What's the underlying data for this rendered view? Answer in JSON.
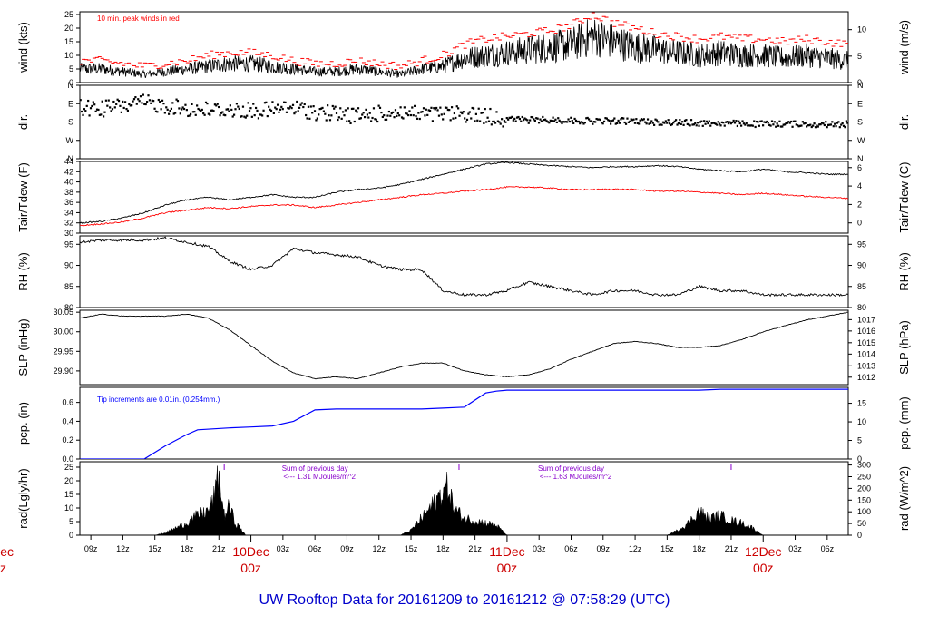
{
  "title": "UW Rooftop Data for 20161209  to  20161212 @ 07:58:29  (UTC)",
  "colors": {
    "primary": "#000000",
    "peak": "#ff0000",
    "dewpoint": "#ff0000",
    "precip": "#0000ff",
    "note": "#8800cc",
    "title": "#0000cc",
    "day": "#cc0000"
  },
  "x_axis": {
    "hour_ticks": [
      "09z",
      "12z",
      "15z",
      "18z",
      "21z",
      "03z",
      "06z",
      "09z",
      "12z",
      "15z",
      "18z",
      "21z",
      "03z",
      "06z",
      "09z",
      "12z",
      "15z",
      "18z",
      "21z",
      "03z",
      "06z"
    ],
    "hour_tick_times": [
      9,
      12,
      15,
      18,
      21,
      27,
      30,
      33,
      36,
      39,
      42,
      45,
      51,
      54,
      57,
      60,
      63,
      66,
      69,
      75,
      78
    ],
    "day_labels": [
      {
        "date": "10Dec",
        "time": "00z",
        "hours": 24
      },
      {
        "date": "11Dec",
        "time": "00z",
        "hours": 48
      },
      {
        "date": "12Dec",
        "time": "00z",
        "hours": 72
      }
    ],
    "left_partial": {
      "date": "ec",
      "time": "z"
    },
    "range_hours": [
      7.97,
      79.97
    ]
  },
  "chart_data": [
    {
      "type": "line",
      "id": "wind",
      "ylabel": "wind (kts)",
      "ylabel_right": "wind (m/s)",
      "ylim": [
        0,
        26
      ],
      "yticks": [
        0,
        5,
        10,
        15,
        20,
        25
      ],
      "right_ticks": [
        {
          "label": "0",
          "value": 0
        },
        {
          "label": "5",
          "value": 9.72
        },
        {
          "label": "10",
          "value": 19.44
        }
      ],
      "annotation": "10 min. peak winds in red",
      "series": [
        {
          "name": "wind",
          "x": [
            8,
            10,
            12,
            14,
            16,
            18,
            20,
            22,
            24,
            26,
            28,
            30,
            32,
            34,
            36,
            38,
            40,
            42,
            44,
            46,
            48,
            50,
            52,
            54,
            56,
            58,
            60,
            62,
            64,
            66,
            68,
            70,
            72,
            74,
            76,
            78,
            80
          ],
          "values": [
            5,
            5,
            4,
            3,
            4,
            5,
            6,
            7,
            7,
            6,
            5,
            4,
            4,
            5,
            4,
            3,
            5,
            6,
            9,
            10,
            11,
            12,
            13,
            14,
            17,
            15,
            13,
            12,
            11,
            10,
            11,
            10,
            10,
            9,
            10,
            9,
            8
          ]
        },
        {
          "name": "peak",
          "x": [
            8,
            10,
            12,
            14,
            16,
            18,
            20,
            22,
            24,
            26,
            28,
            30,
            32,
            34,
            36,
            38,
            40,
            42,
            44,
            46,
            48,
            50,
            52,
            54,
            56,
            58,
            60,
            62,
            64,
            66,
            68,
            70,
            72,
            74,
            76,
            78,
            80
          ],
          "values": [
            8,
            8,
            7,
            6,
            7,
            8,
            10,
            11,
            11,
            10,
            8,
            7,
            7,
            8,
            7,
            6,
            8,
            10,
            14,
            16,
            17,
            18,
            19,
            21,
            25,
            22,
            20,
            18,
            17,
            16,
            17,
            16,
            16,
            15,
            16,
            15,
            14
          ]
        }
      ]
    },
    {
      "type": "scatter",
      "id": "dir",
      "ylabel": "dir.",
      "ylabel_right": "dir.",
      "yticks": [
        {
          "label": "N",
          "value": 0
        },
        {
          "label": "E",
          "value": 90
        },
        {
          "label": "S",
          "value": 180
        },
        {
          "label": "W",
          "value": 270
        },
        {
          "label": "N",
          "value": 360
        }
      ],
      "series": [
        {
          "name": "direction",
          "x": [
            8,
            10,
            12,
            14,
            16,
            18,
            20,
            22,
            24,
            26,
            28,
            30,
            32,
            34,
            36,
            38,
            40,
            42,
            44,
            46,
            48,
            50,
            52,
            54,
            56,
            58,
            60,
            62,
            64,
            66,
            68,
            70,
            72,
            74,
            76,
            78,
            80
          ],
          "values": [
            110,
            115,
            100,
            85,
            100,
            115,
            120,
            120,
            125,
            120,
            110,
            130,
            140,
            150,
            140,
            130,
            145,
            140,
            140,
            150,
            165,
            170,
            170,
            172,
            175,
            175,
            175,
            180,
            182,
            185,
            185,
            188,
            190,
            188,
            190,
            192,
            190
          ]
        }
      ]
    },
    {
      "type": "line",
      "id": "temp",
      "ylabel": "Tair/Tdew (F)",
      "ylabel_right": "Tair/Tdew (C)",
      "ylim": [
        30,
        44
      ],
      "yticks": [
        30,
        32,
        34,
        36,
        38,
        40,
        42,
        44
      ],
      "right_ticks": [
        {
          "label": "0",
          "value": 32
        },
        {
          "label": "2",
          "value": 35.6
        },
        {
          "label": "4",
          "value": 39.2
        },
        {
          "label": "6",
          "value": 42.8
        }
      ],
      "series": [
        {
          "name": "Tair",
          "x": [
            8,
            10,
            12,
            14,
            16,
            18,
            20,
            22,
            24,
            26,
            28,
            30,
            32,
            34,
            36,
            38,
            40,
            42,
            44,
            46,
            48,
            50,
            52,
            54,
            56,
            58,
            60,
            62,
            64,
            66,
            68,
            70,
            72,
            74,
            76,
            78,
            80
          ],
          "values": [
            32,
            32.3,
            33,
            34,
            35.5,
            36.5,
            37,
            36.5,
            37,
            37.5,
            37,
            37,
            38,
            38.5,
            38.8,
            39.5,
            40.5,
            41.5,
            42.5,
            43.5,
            43.8,
            43.5,
            43.2,
            43,
            42.8,
            43,
            43,
            43.2,
            43,
            42.5,
            42.2,
            42,
            42.5,
            42,
            41.8,
            41.5,
            41.5
          ]
        },
        {
          "name": "Tdew",
          "x": [
            8,
            10,
            12,
            14,
            16,
            18,
            20,
            22,
            24,
            26,
            28,
            30,
            32,
            34,
            36,
            38,
            40,
            42,
            44,
            46,
            48,
            50,
            52,
            54,
            56,
            58,
            60,
            62,
            64,
            66,
            68,
            70,
            72,
            74,
            76,
            78,
            80
          ],
          "values": [
            31.5,
            31.8,
            32.2,
            33,
            34,
            34.5,
            35,
            34.8,
            35.2,
            35.5,
            35.5,
            35,
            35.5,
            36,
            36.5,
            37,
            37.5,
            37.8,
            38.2,
            38.5,
            39,
            39,
            38.8,
            38.5,
            38.5,
            38.6,
            38.5,
            38.2,
            38.2,
            38,
            37.8,
            37.5,
            37.8,
            37.5,
            37.2,
            37,
            36.8
          ]
        }
      ]
    },
    {
      "type": "line",
      "id": "rh",
      "ylabel": "RH (%)",
      "ylabel_right": "RH (%)",
      "ylim": [
        80,
        97
      ],
      "yticks": [
        80,
        85,
        90,
        95
      ],
      "right_ticks": [
        {
          "label": "80",
          "value": 80
        },
        {
          "label": "85",
          "value": 85
        },
        {
          "label": "90",
          "value": 90
        },
        {
          "label": "95",
          "value": 95
        }
      ],
      "series": [
        {
          "name": "RH",
          "x": [
            8,
            10,
            12,
            14,
            16,
            18,
            20,
            22,
            24,
            26,
            28,
            30,
            32,
            34,
            36,
            38,
            40,
            42,
            44,
            46,
            48,
            50,
            52,
            54,
            56,
            58,
            60,
            62,
            64,
            66,
            68,
            70,
            72,
            74,
            76,
            78,
            80
          ],
          "values": [
            95.5,
            96,
            96,
            96,
            96.5,
            95.5,
            94.5,
            91,
            89,
            90,
            94,
            93,
            92.5,
            92,
            90,
            89,
            89,
            84,
            83,
            83,
            84,
            86,
            85,
            84,
            83,
            84,
            84,
            83,
            83,
            85,
            84,
            84,
            83,
            83,
            83,
            83,
            83
          ]
        }
      ]
    },
    {
      "type": "line",
      "id": "slp",
      "ylabel": "SLP (inHg)",
      "ylabel_right": "SLP (hPa)",
      "ylim": [
        29.865,
        30.055
      ],
      "yticks": [
        29.9,
        29.95,
        30.0,
        30.05
      ],
      "ytick_labels": [
        "29.90",
        "29.95",
        "30.00",
        "30.05"
      ],
      "right_ticks": [
        {
          "label": "1012",
          "value": 29.884
        },
        {
          "label": "1013",
          "value": 29.913
        },
        {
          "label": "1014",
          "value": 29.943
        },
        {
          "label": "1015",
          "value": 29.972
        },
        {
          "label": "1016",
          "value": 30.002
        },
        {
          "label": "1017",
          "value": 30.031
        }
      ],
      "series": [
        {
          "name": "SLP",
          "x": [
            8,
            10,
            12,
            14,
            16,
            18,
            20,
            22,
            24,
            26,
            28,
            30,
            32,
            34,
            36,
            38,
            40,
            42,
            44,
            46,
            48,
            50,
            52,
            54,
            56,
            58,
            60,
            62,
            64,
            66,
            68,
            70,
            72,
            74,
            76,
            78,
            80
          ],
          "values": [
            30.035,
            30.045,
            30.04,
            30.04,
            30.04,
            30.045,
            30.035,
            30.005,
            29.965,
            29.925,
            29.895,
            29.88,
            29.885,
            29.88,
            29.895,
            29.91,
            29.92,
            29.92,
            29.9,
            29.89,
            29.885,
            29.89,
            29.905,
            29.93,
            29.95,
            29.97,
            29.975,
            29.97,
            29.96,
            29.96,
            29.965,
            29.98,
            30.0,
            30.015,
            30.03,
            30.04,
            30.05
          ]
        }
      ]
    },
    {
      "type": "area",
      "id": "precip",
      "ylabel": "pcp. (in)",
      "ylabel_right": "pcp. (mm)",
      "ylim": [
        0,
        0.76
      ],
      "yticks": [
        0.0,
        0.2,
        0.4,
        0.6
      ],
      "ytick_labels": [
        "0.0",
        "0.2",
        "0.4",
        "0.6"
      ],
      "right_ticks": [
        {
          "label": "0",
          "value": 0
        },
        {
          "label": "5",
          "value": 0.197
        },
        {
          "label": "10",
          "value": 0.394
        },
        {
          "label": "15",
          "value": 0.591
        }
      ],
      "annotation": "Tip increments are 0.01in. (0.254mm.)",
      "series": [
        {
          "name": "precip",
          "x": [
            8,
            12,
            14,
            16,
            18,
            19,
            22,
            24,
            26,
            28,
            30,
            32,
            34,
            36,
            38,
            40,
            42,
            44,
            46,
            47,
            48,
            50,
            52,
            54,
            56,
            58,
            60,
            62,
            64,
            66,
            68,
            70,
            72,
            74,
            76,
            78,
            80
          ],
          "values": [
            0,
            0,
            0,
            0.14,
            0.26,
            0.31,
            0.33,
            0.34,
            0.35,
            0.4,
            0.52,
            0.53,
            0.53,
            0.53,
            0.53,
            0.53,
            0.54,
            0.55,
            0.7,
            0.72,
            0.73,
            0.73,
            0.73,
            0.73,
            0.73,
            0.73,
            0.73,
            0.73,
            0.73,
            0.73,
            0.74,
            0.74,
            0.74,
            0.74,
            0.74,
            0.74,
            0.74
          ]
        }
      ]
    },
    {
      "type": "area",
      "id": "rad",
      "ylabel": "rad(Lgly/hr)",
      "ylabel_right": "rad (W/m^2)",
      "ylim": [
        0,
        27
      ],
      "yticks": [
        0,
        5,
        10,
        15,
        20,
        25
      ],
      "right_ticks": [
        {
          "label": "0",
          "value": 0
        },
        {
          "label": "50",
          "value": 4.3
        },
        {
          "label": "100",
          "value": 8.6
        },
        {
          "label": "150",
          "value": 12.9
        },
        {
          "label": "200",
          "value": 17.2
        },
        {
          "label": "250",
          "value": 21.5
        },
        {
          "label": "300",
          "value": 25.8
        }
      ],
      "annotations": [
        {
          "text": "Sum of previous day",
          "hours": 30
        },
        {
          "text": "<--- 1.31 MJoules/m^2",
          "hours": 30
        },
        {
          "text": "Sum of previous day",
          "hours": 54
        },
        {
          "text": "<--- 1.63 MJoules/m^2",
          "hours": 54
        }
      ],
      "series": [
        {
          "name": "radiation",
          "x": [
            8,
            15,
            16,
            17,
            18,
            19,
            20,
            20.5,
            21,
            21.5,
            22,
            22.5,
            23,
            23.5,
            24,
            38,
            39,
            40,
            41,
            42,
            42.5,
            43,
            43.5,
            44,
            45,
            46,
            47,
            48,
            63,
            64,
            65,
            66,
            66.5,
            67,
            68,
            69,
            70,
            71,
            72,
            80
          ],
          "values": [
            0,
            0,
            1,
            3,
            5,
            8,
            10,
            15,
            24,
            8,
            12,
            5,
            3,
            0,
            0,
            0,
            2,
            7,
            12,
            18,
            20,
            11,
            9,
            7,
            6,
            5,
            4,
            0,
            0,
            2,
            5,
            10,
            8,
            7,
            8,
            6,
            5,
            3,
            0,
            0
          ]
        }
      ]
    }
  ]
}
